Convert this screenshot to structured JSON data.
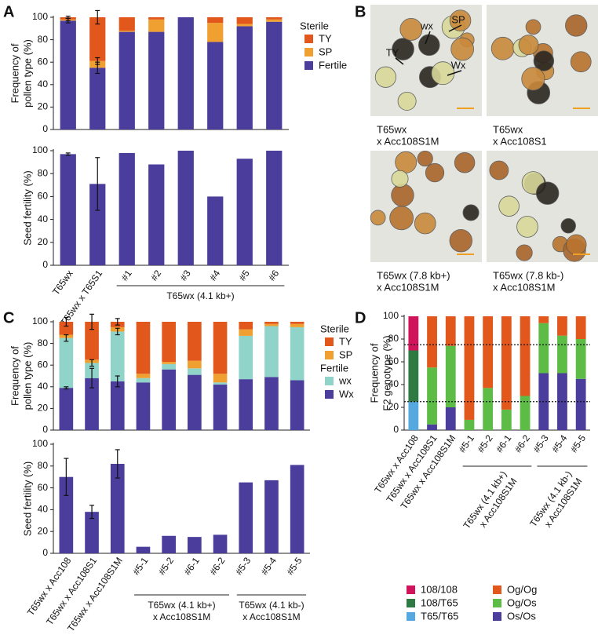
{
  "panel_labels": [
    "A",
    "B",
    "C",
    "D"
  ],
  "chart_data": [
    {
      "type": "bar",
      "categories": [
        "T65wx",
        "T65wx x T65S1",
        "#1",
        "#2",
        "#3",
        "#4",
        "#5",
        "#6"
      ],
      "groups": [
        {
          "label": [
            "T65wx (4.1 kb+)"
          ],
          "categories": [
            "#1",
            "#2",
            "#3",
            "#4",
            "#5",
            "#6"
          ]
        }
      ],
      "subplots": [
        {
          "stacked": true,
          "ylabel": [
            "Frequency of",
            "pollen type (%)"
          ],
          "ylim": [
            0,
            100
          ],
          "yticks": [
            0,
            20,
            40,
            60,
            80,
            100
          ],
          "series": [
            {
              "name": "Fertile",
              "color": "#4a3d9b",
              "values": [
                97,
                55,
                87,
                87,
                100,
                78,
                92,
                96
              ],
              "errors": [
                2,
                5,
                null,
                null,
                null,
                null,
                null,
                null
              ]
            },
            {
              "name": "SP",
              "color": "#f0a030",
              "values": [
                1,
                6,
                1,
                11,
                0,
                17,
                2,
                2
              ],
              "errors": [
                1,
                3,
                null,
                null,
                null,
                null,
                null,
                null
              ]
            },
            {
              "name": "TY",
              "color": "#e2571c",
              "values": [
                2,
                39,
                12,
                2,
                0,
                5,
                6,
                2
              ],
              "errors": [
                1,
                6,
                null,
                null,
                null,
                null,
                null,
                null
              ]
            }
          ],
          "legend": [
            {
              "title": "Sterile",
              "series": [
                "TY",
                "SP"
              ]
            },
            {
              "series": [
                "Fertile"
              ]
            }
          ]
        },
        {
          "stacked": false,
          "ylabel": [
            "Seed fertility (%)"
          ],
          "ylim": [
            0,
            100
          ],
          "yticks": [
            0,
            20,
            40,
            60,
            80,
            100
          ],
          "series": [
            {
              "color": "#4a3d9b",
              "values": [
                97,
                71,
                98,
                88,
                100,
                60,
                93,
                100
              ],
              "errors": [
                1,
                23,
                null,
                null,
                null,
                null,
                null,
                null
              ]
            }
          ]
        }
      ]
    },
    {
      "type": "bar",
      "categories": [
        "T65wx x Acc108",
        "T65wx x Acc108S1",
        "T65wx x Acc108S1M",
        "#5-1",
        "#5-2",
        "#6-1",
        "#6-2",
        "#5-3",
        "#5-4",
        "#5-5"
      ],
      "groups": [
        {
          "label": [
            "T65wx (4.1 kb+)",
            "x Acc108S1M"
          ],
          "categories": [
            "#5-1",
            "#5-2",
            "#6-1",
            "#6-2"
          ]
        },
        {
          "label": [
            "T65wx (4.1 kb-)",
            "x Acc108S1M"
          ],
          "categories": [
            "#5-3",
            "#5-4",
            "#5-5"
          ]
        }
      ],
      "subplots": [
        {
          "stacked": true,
          "ylabel": [
            "Frequency of",
            "pollen type (%)"
          ],
          "ylim": [
            0,
            100
          ],
          "yticks": [
            0,
            20,
            40,
            60,
            80,
            100
          ],
          "series": [
            {
              "name": "Wx",
              "color": "#4a3d9b",
              "values": [
                39,
                48,
                45,
                44,
                56,
                51,
                42,
                47,
                49,
                46
              ],
              "errors": [
                1,
                9,
                5,
                null,
                null,
                null,
                null,
                null,
                null,
                null
              ]
            },
            {
              "name": "wx",
              "color": "#8fd3c9",
              "values": [
                46,
                14,
                46,
                4,
                5,
                6,
                2,
                40,
                47,
                49
              ],
              "errors": [
                3,
                3,
                3,
                null,
                null,
                null,
                null,
                null,
                null,
                null
              ]
            },
            {
              "name": "SP",
              "color": "#f0a030",
              "values": [
                3,
                3,
                4,
                4,
                2,
                7,
                8,
                6,
                2,
                3
              ]
            },
            {
              "name": "TY",
              "color": "#e2571c",
              "values": [
                12,
                35,
                5,
                48,
                37,
                36,
                48,
                7,
                2,
                2
              ],
              "errors": [
                4,
                7,
                3,
                null,
                null,
                null,
                null,
                null,
                null,
                null
              ]
            }
          ],
          "legend": [
            {
              "title": "Sterile",
              "series": [
                "TY",
                "SP"
              ]
            },
            {
              "title": "Fertile",
              "series": [
                "wx",
                "Wx"
              ]
            }
          ]
        },
        {
          "stacked": false,
          "ylabel": [
            "Seed fertility (%)"
          ],
          "ylim": [
            0,
            100
          ],
          "yticks": [
            0,
            20,
            40,
            60,
            80,
            100
          ],
          "series": [
            {
              "color": "#4a3d9b",
              "values": [
                70,
                38,
                82,
                6,
                16,
                15,
                17,
                65,
                67,
                81
              ],
              "errors": [
                17,
                6,
                13,
                null,
                null,
                null,
                null,
                null,
                null,
                null
              ]
            }
          ]
        }
      ]
    },
    {
      "type": "bar",
      "categories": [
        "T65wx x Acc108",
        "T65wx x Acc108S1",
        "T65wx x Acc108S1M",
        "#5-1",
        "#5-2",
        "#6-1",
        "#6-2",
        "#5-3",
        "#5-4",
        "#5-5"
      ],
      "groups": [
        {
          "label": [
            "T65wx (4.1 kb+)",
            "x Acc108S1M"
          ],
          "categories": [
            "#5-1",
            "#5-2",
            "#6-1",
            "#6-2"
          ]
        },
        {
          "label": [
            "T65wx (4.1 kb-)",
            "x Acc108S1M"
          ],
          "categories": [
            "#5-3",
            "#5-4",
            "#5-5"
          ]
        }
      ],
      "subplots": [
        {
          "stacked": true,
          "ylabel": [
            "Frequency of",
            "F2 genotype (%)"
          ],
          "ylim": [
            0,
            100
          ],
          "yticks": [
            0,
            20,
            40,
            60,
            80,
            100
          ],
          "reference_lines": [
            25,
            75
          ],
          "series": [
            {
              "name": "T65/T65",
              "color": "#56a8e0",
              "values": [
                25,
                0,
                0,
                0,
                0,
                0,
                0,
                0,
                0,
                0
              ]
            },
            {
              "name": "108/T65",
              "color": "#2f7a43",
              "values": [
                45,
                0,
                0,
                0,
                0,
                0,
                0,
                0,
                0,
                0
              ]
            },
            {
              "name": "108/108",
              "color": "#d1135c",
              "values": [
                30,
                0,
                0,
                0,
                0,
                0,
                0,
                0,
                0,
                0
              ]
            },
            {
              "name": "Os/Os",
              "color": "#4a3d9b",
              "values": [
                0,
                5,
                20,
                0,
                0,
                0,
                0,
                50,
                50,
                45
              ]
            },
            {
              "name": "Og/Os",
              "color": "#5cbc45",
              "values": [
                0,
                50,
                54,
                9,
                37,
                18,
                30,
                44,
                33,
                35
              ]
            },
            {
              "name": "Og/Og",
              "color": "#e2571c",
              "values": [
                0,
                45,
                26,
                91,
                63,
                82,
                70,
                6,
                17,
                20
              ]
            }
          ],
          "legend": [
            {
              "series": [
                "108/108",
                "108/T65",
                "T65/T65"
              ]
            },
            {
              "series": [
                "Og/Og",
                "Og/Os",
                "Os/Os"
              ]
            }
          ]
        }
      ]
    }
  ],
  "micrographs": [
    {
      "caption": [
        "T65wx",
        "x Acc108S1M"
      ],
      "annotations": [
        "TY",
        "wx",
        "SP",
        "Wx"
      ]
    },
    {
      "caption": [
        "T65wx",
        "x Acc108S1"
      ]
    },
    {
      "caption": [
        "T65wx (7.8 kb+)",
        "x Acc108S1M"
      ]
    },
    {
      "caption": [
        "T65wx (7.8 kb-)",
        "x Acc108S1M"
      ]
    }
  ]
}
